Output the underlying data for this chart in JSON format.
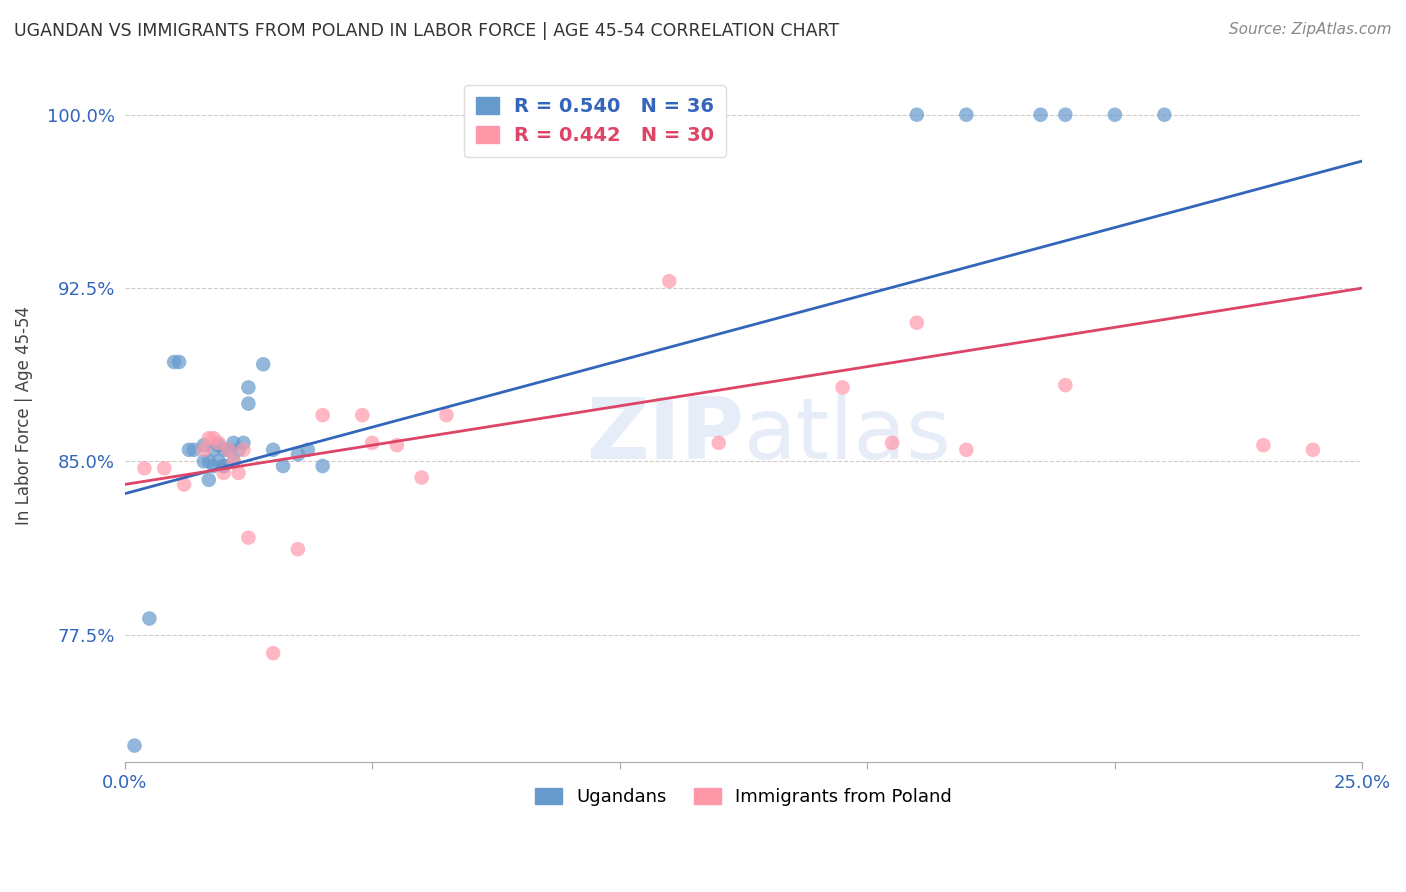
{
  "title": "UGANDAN VS IMMIGRANTS FROM POLAND IN LABOR FORCE | AGE 45-54 CORRELATION CHART",
  "source": "Source: ZipAtlas.com",
  "ylabel": "In Labor Force | Age 45-54",
  "xlim": [
    0.0,
    0.25
  ],
  "ylim": [
    0.72,
    1.02
  ],
  "xticks": [
    0.0,
    0.05,
    0.1,
    0.15,
    0.2,
    0.25
  ],
  "xticklabels": [
    "0.0%",
    "",
    "",
    "",
    "",
    "25.0%"
  ],
  "yticks": [
    0.775,
    0.85,
    0.925,
    1.0
  ],
  "yticklabels": [
    "77.5%",
    "85.0%",
    "92.5%",
    "100.0%"
  ],
  "legend_blue_label": "R = 0.540   N = 36",
  "legend_pink_label": "R = 0.442   N = 30",
  "legend_label1": "Ugandans",
  "legend_label2": "Immigrants from Poland",
  "blue_color": "#6699CC",
  "pink_color": "#FF99AA",
  "blue_line_color": "#3366BB",
  "pink_line_color": "#DD4466",
  "background_color": "#FFFFFF",
  "blue_line_x0": 0.0,
  "blue_line_y0": 0.836,
  "blue_line_x1": 0.25,
  "blue_line_y1": 0.98,
  "pink_line_x0": 0.0,
  "pink_line_y0": 0.84,
  "pink_line_x1": 0.25,
  "pink_line_y1": 0.925,
  "blue_x": [
    0.002,
    0.005,
    0.01,
    0.011,
    0.013,
    0.014,
    0.016,
    0.016,
    0.017,
    0.017,
    0.018,
    0.018,
    0.019,
    0.019,
    0.02,
    0.02,
    0.02,
    0.021,
    0.022,
    0.022,
    0.023,
    0.024,
    0.025,
    0.025,
    0.028,
    0.03,
    0.032,
    0.035,
    0.037,
    0.04,
    0.16,
    0.17,
    0.185,
    0.19,
    0.2,
    0.21
  ],
  "blue_y": [
    0.727,
    0.782,
    0.893,
    0.893,
    0.855,
    0.855,
    0.85,
    0.857,
    0.842,
    0.85,
    0.848,
    0.855,
    0.85,
    0.857,
    0.848,
    0.855,
    0.848,
    0.855,
    0.85,
    0.858,
    0.855,
    0.858,
    0.875,
    0.882,
    0.892,
    0.855,
    0.848,
    0.853,
    0.855,
    0.848,
    1.0,
    1.0,
    1.0,
    1.0,
    1.0,
    1.0
  ],
  "pink_x": [
    0.004,
    0.008,
    0.012,
    0.016,
    0.017,
    0.018,
    0.019,
    0.02,
    0.021,
    0.022,
    0.023,
    0.024,
    0.025,
    0.03,
    0.035,
    0.04,
    0.048,
    0.05,
    0.055,
    0.06,
    0.065,
    0.11,
    0.12,
    0.145,
    0.155,
    0.16,
    0.17,
    0.19,
    0.23,
    0.24
  ],
  "pink_y": [
    0.847,
    0.847,
    0.84,
    0.855,
    0.86,
    0.86,
    0.858,
    0.845,
    0.855,
    0.85,
    0.845,
    0.855,
    0.817,
    0.767,
    0.812,
    0.87,
    0.87,
    0.858,
    0.857,
    0.843,
    0.87,
    0.928,
    0.858,
    0.882,
    0.858,
    0.91,
    0.855,
    0.883,
    0.857,
    0.855
  ]
}
